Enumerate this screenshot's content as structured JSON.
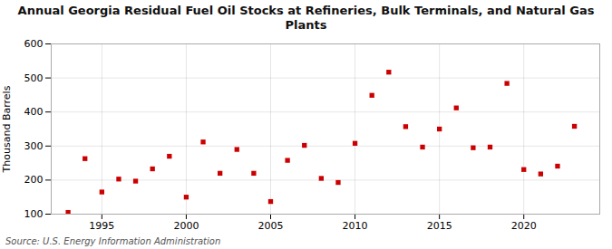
{
  "chart_data": {
    "type": "scatter",
    "title": "Annual Georgia Residual Fuel Oil Stocks at Refineries, Bulk Terminals, and Natural Gas Plants",
    "ylabel": "Thousand Barrels",
    "source": "Source: U.S. Energy Information Administration",
    "x": [
      1993,
      1994,
      1995,
      1996,
      1997,
      1998,
      1999,
      2000,
      2001,
      2002,
      2003,
      2004,
      2005,
      2006,
      2007,
      2008,
      2009,
      2010,
      2011,
      2012,
      2013,
      2014,
      2015,
      2016,
      2017,
      2018,
      2019,
      2020,
      2021,
      2022,
      2023
    ],
    "values": [
      105,
      263,
      165,
      203,
      197,
      233,
      270,
      150,
      312,
      220,
      290,
      220,
      137,
      258,
      302,
      205,
      193,
      308,
      449,
      517,
      357,
      297,
      350,
      412,
      295,
      297,
      484,
      231,
      218,
      241,
      358
    ],
    "color": "#cc0000",
    "marker": "square",
    "xlim": [
      1992.0,
      2024.5
    ],
    "xticks": [
      1995,
      2000,
      2005,
      2010,
      2015,
      2020
    ],
    "ylim": [
      100,
      600
    ],
    "yticks": [
      100,
      200,
      300,
      400,
      500,
      600
    ],
    "grid": true
  }
}
